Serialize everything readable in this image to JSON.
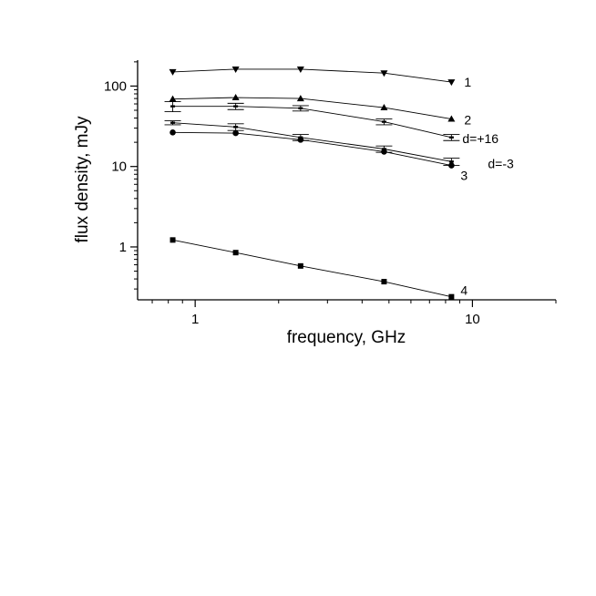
{
  "chart_data": {
    "type": "line",
    "xlabel": "frequency, GHz",
    "ylabel": "flux density, mJy",
    "x_scale": "log",
    "y_scale": "log",
    "xlim": [
      0.62,
      20
    ],
    "ylim": [
      0.22,
      210
    ],
    "x_ticks": [
      {
        "value": 1,
        "label": "1"
      },
      {
        "value": 10,
        "label": "10"
      }
    ],
    "y_ticks": [
      {
        "value": 1,
        "label": "1"
      },
      {
        "value": 10,
        "label": "10"
      },
      {
        "value": 100,
        "label": "100"
      }
    ],
    "grid": false,
    "x": [
      0.83,
      1.4,
      2.4,
      4.8,
      8.4
    ],
    "series": [
      {
        "name": "1",
        "marker": "triangle-down",
        "values": [
          150,
          162,
          162,
          145,
          112
        ],
        "errors": [
          0,
          0,
          0,
          0,
          0
        ]
      },
      {
        "name": "2",
        "marker": "triangle-up",
        "values": [
          69,
          72,
          70,
          54,
          39
        ],
        "errors": [
          0,
          0,
          0,
          0,
          0
        ]
      },
      {
        "name": "d=+16",
        "marker": "dash",
        "values": [
          56,
          56,
          53,
          36,
          23
        ],
        "errors": [
          8,
          5,
          4,
          3,
          2
        ]
      },
      {
        "name": "d=-3",
        "marker": "dash",
        "values": [
          35,
          31,
          23,
          16.5,
          11.5
        ],
        "errors": [
          2,
          3,
          2,
          1.5,
          1.2
        ]
      },
      {
        "name": "3",
        "marker": "circle",
        "values": [
          26.5,
          26,
          21.5,
          15.3,
          10.3
        ],
        "errors": [
          0,
          0,
          0,
          0,
          0
        ]
      },
      {
        "name": "4",
        "marker": "square",
        "values": [
          1.22,
          0.85,
          0.58,
          0.37,
          0.24
        ],
        "errors": [
          0,
          0,
          0,
          0,
          0
        ]
      }
    ]
  }
}
